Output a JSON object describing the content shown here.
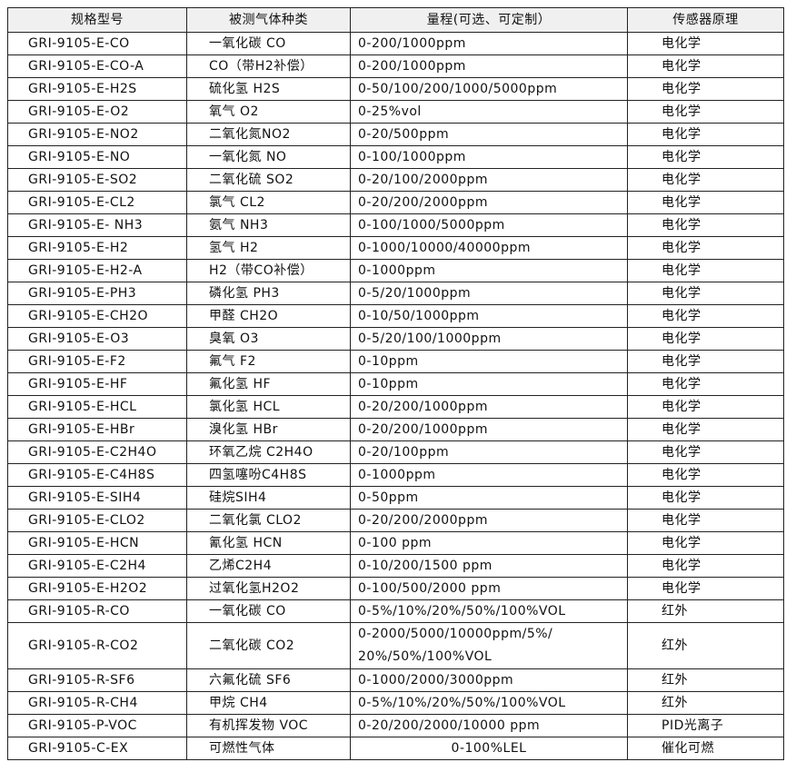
{
  "table": {
    "header": [
      "规格型号",
      "被测气体种类",
      "量程(可选、可定制）",
      "传感器原理"
    ],
    "rows": [
      [
        "GRI-9105-E-CO",
        "一氧化碳 CO",
        "0-200/1000ppm",
        "电化学"
      ],
      [
        "GRI-9105-E-CO-A",
        "CO（带H2补偿）",
        "0-200/1000ppm",
        "电化学"
      ],
      [
        "GRI-9105-E-H2S",
        "硫化氢 H2S",
        "0-50/100/200/1000/5000ppm",
        "电化学"
      ],
      [
        "GRI-9105-E-O2",
        "氧气 O2",
        "0-25%vol",
        "电化学"
      ],
      [
        "GRI-9105-E-NO2",
        "二氧化氮NO2",
        "0-20/500ppm",
        "电化学"
      ],
      [
        "GRI-9105-E-NO",
        "一氧化氮 NO",
        "0-100/1000ppm",
        "电化学"
      ],
      [
        "GRI-9105-E-SO2",
        "二氧化硫 SO2",
        "0-20/100/2000ppm",
        "电化学"
      ],
      [
        "GRI-9105-E-CL2",
        "氯气 CL2",
        "0-20/200/2000ppm",
        "电化学"
      ],
      [
        "GRI-9105-E- NH3",
        "氨气 NH3",
        "0-100/1000/5000ppm",
        "电化学"
      ],
      [
        "GRI-9105-E-H2",
        "氢气 H2",
        "0-1000/10000/40000ppm",
        "电化学"
      ],
      [
        "GRI-9105-E-H2-A",
        "H2（带CO补偿）",
        "0-1000ppm",
        "电化学"
      ],
      [
        "GRI-9105-E-PH3",
        "磷化氢 PH3",
        "0-5/20/1000ppm",
        "电化学"
      ],
      [
        "GRI-9105-E-CH2O",
        "甲醛 CH2O",
        "0-10/50/1000ppm",
        "电化学"
      ],
      [
        "GRI-9105-E-O3",
        "臭氧 O3",
        "0-5/20/100/1000ppm",
        "电化学"
      ],
      [
        "GRI-9105-E-F2",
        "氟气 F2",
        "0-10ppm",
        "电化学"
      ],
      [
        "GRI-9105-E-HF",
        "氟化氢 HF",
        "0-10ppm",
        "电化学"
      ],
      [
        "GRI-9105-E-HCL",
        "氯化氢 HCL",
        "0-20/200/1000ppm",
        "电化学"
      ],
      [
        "GRI-9105-E-HBr",
        "溴化氢 HBr",
        "0-20/200/1000ppm",
        "电化学"
      ],
      [
        "GRI-9105-E-C2H4O",
        "环氧乙烷 C2H4O",
        "0-20/100ppm",
        "电化学"
      ],
      [
        "GRI-9105-E-C4H8S",
        "四氢噻吩C4H8S",
        "0-1000ppm",
        "电化学"
      ],
      [
        "GRI-9105-E-SIH4",
        "硅烷SIH4",
        "0-50ppm",
        "电化学"
      ],
      [
        "GRI-9105-E-CLO2",
        "二氧化氯 CLO2",
        "0-20/200/2000ppm",
        "电化学"
      ],
      [
        "GRI-9105-E-HCN",
        "氰化氢 HCN",
        "0-100 ppm",
        "电化学"
      ],
      [
        "GRI-9105-E-C2H4",
        "乙烯C2H4",
        "0-10/200/1500 ppm",
        "电化学"
      ],
      [
        "GRI-9105-E-H2O2",
        "过氧化氢H2O2",
        "0-100/500/2000 ppm",
        "电化学"
      ],
      [
        "GRI-9105-R-CO",
        "一氧化碳 CO",
        "0-5%/10%/20%/50%/100%VOL",
        "红外"
      ],
      [
        "GRI-9105-R-CO2",
        "二氧化碳 CO2",
        [
          "0-2000/5000/10000ppm/5%/",
          "20%/50%/100%VOL"
        ],
        "红外"
      ],
      [
        "GRI-9105-R-SF6",
        "六氟化硫 SF6",
        "0-1000/2000/3000ppm",
        "红外"
      ],
      [
        "GRI-9105-R-CH4",
        "甲烷 CH4",
        "0-5%/10%/20%/50%/100%VOL",
        "红外"
      ],
      [
        "GRI-9105-P-VOC",
        "有机挥发物 VOC",
        "0-20/200/2000/10000 ppm",
        "PID光离子"
      ],
      [
        "GRI-9105-C-EX",
        "可燃性气体",
        "0-100%LEL",
        "催化可燃"
      ]
    ]
  }
}
